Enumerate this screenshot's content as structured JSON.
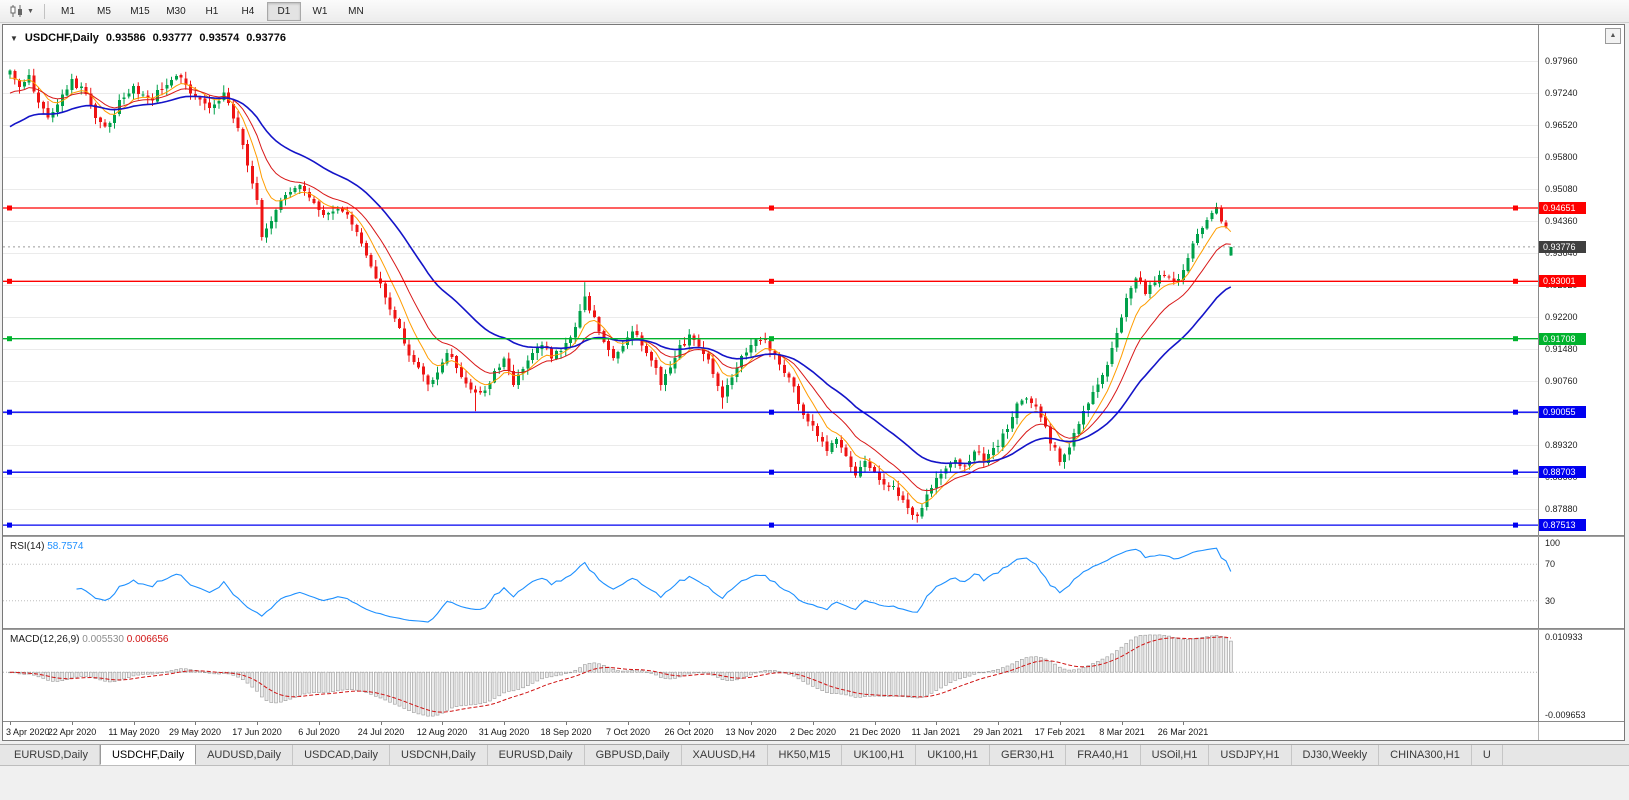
{
  "toolbar": {
    "periods": [
      "M1",
      "M5",
      "M15",
      "M30",
      "H1",
      "H4",
      "D1",
      "W1",
      "MN"
    ],
    "active_period": "D1"
  },
  "chart": {
    "collapse_icon": "▼",
    "symbol_title": "USDCHF,Daily",
    "ohlc": {
      "open": "0.93586",
      "high": "0.93777",
      "low": "0.93574",
      "close": "0.93776"
    },
    "scroll_icon": "▲",
    "price_axis": {
      "min": 0.8729,
      "max": 0.9877,
      "decimals": 5,
      "ticks": [
        0.9796,
        0.9724,
        0.9652,
        0.958,
        0.9508,
        0.9436,
        0.9364,
        0.9292,
        0.922,
        0.9148,
        0.9076,
        0.9004,
        0.8932,
        0.886,
        0.8788,
        0.8716
      ]
    },
    "current_price": {
      "value": 0.93776,
      "label": "0.93776",
      "bg": "#3f3f3f"
    },
    "hlines": [
      {
        "value": 0.94651,
        "label": "0.94651",
        "color": "#fe0000"
      },
      {
        "value": 0.93001,
        "label": "0.93001",
        "color": "#fe0000"
      },
      {
        "value": 0.91708,
        "label": "0.91708",
        "color": "#00b22d"
      },
      {
        "value": 0.90055,
        "label": "0.90055",
        "color": "#0000f0"
      },
      {
        "value": 0.88703,
        "label": "0.88703",
        "color": "#0000f0"
      },
      {
        "value": 0.87513,
        "label": "0.87513",
        "color": "#0000f0"
      }
    ],
    "colors": {
      "up": "#00a04a",
      "down": "#ee1414",
      "ma_fast": "#ff9d00",
      "ma_mid": "#d81919",
      "ma_slow": "#1414c8",
      "grid": "#ebebeb"
    },
    "ma_start": {
      "fast": 0.9752,
      "mid": 0.9716,
      "slow": 0.964
    },
    "candle_count": 258,
    "extremes": [
      {
        "i": 98,
        "low": 0.9008
      },
      {
        "i": 121,
        "high": 0.9298
      },
      {
        "i": 150,
        "low": 0.9013
      },
      {
        "i": 191,
        "low": 0.8757
      },
      {
        "i": 254,
        "high": 0.9472
      }
    ],
    "last_candle": {
      "o": 0.93586,
      "h": 0.93777,
      "l": 0.93574,
      "c": 0.93776
    },
    "series_anchors": [
      [
        0,
        0.978
      ],
      [
        2,
        0.9745
      ],
      [
        4,
        0.9762
      ],
      [
        6,
        0.97
      ],
      [
        8,
        0.9665
      ],
      [
        10,
        0.97
      ],
      [
        13,
        0.9748
      ],
      [
        16,
        0.9725
      ],
      [
        18,
        0.967
      ],
      [
        20,
        0.964
      ],
      [
        23,
        0.97
      ],
      [
        26,
        0.9735
      ],
      [
        30,
        0.9715
      ],
      [
        33,
        0.9748
      ],
      [
        36,
        0.9758
      ],
      [
        39,
        0.971
      ],
      [
        42,
        0.969
      ],
      [
        45,
        0.9725
      ],
      [
        46,
        0.97
      ],
      [
        48,
        0.964
      ],
      [
        50,
        0.956
      ],
      [
        52,
        0.948
      ],
      [
        53,
        0.94
      ],
      [
        55,
        0.944
      ],
      [
        58,
        0.95
      ],
      [
        61,
        0.952
      ],
      [
        63,
        0.949
      ],
      [
        66,
        0.945
      ],
      [
        69,
        0.947
      ],
      [
        72,
        0.943
      ],
      [
        74,
        0.939
      ],
      [
        76,
        0.934
      ],
      [
        78,
        0.929
      ],
      [
        80,
        0.924
      ],
      [
        82,
        0.919
      ],
      [
        84,
        0.914
      ],
      [
        86,
        0.91
      ],
      [
        88,
        0.9065
      ],
      [
        90,
        0.909
      ],
      [
        92,
        0.914
      ],
      [
        94,
        0.911
      ],
      [
        96,
        0.9075
      ],
      [
        98,
        0.9045
      ],
      [
        100,
        0.906
      ],
      [
        102,
        0.909
      ],
      [
        104,
        0.912
      ],
      [
        106,
        0.907
      ],
      [
        108,
        0.91
      ],
      [
        110,
        0.9135
      ],
      [
        112,
        0.9155
      ],
      [
        114,
        0.913
      ],
      [
        116,
        0.915
      ],
      [
        118,
        0.918
      ],
      [
        120,
        0.923
      ],
      [
        121,
        0.9262
      ],
      [
        123,
        0.9215
      ],
      [
        125,
        0.917
      ],
      [
        127,
        0.9135
      ],
      [
        129,
        0.916
      ],
      [
        131,
        0.9185
      ],
      [
        133,
        0.916
      ],
      [
        135,
        0.912
      ],
      [
        137,
        0.9075
      ],
      [
        139,
        0.911
      ],
      [
        141,
        0.915
      ],
      [
        143,
        0.9175
      ],
      [
        145,
        0.9155
      ],
      [
        147,
        0.912
      ],
      [
        149,
        0.907
      ],
      [
        150,
        0.9045
      ],
      [
        152,
        0.909
      ],
      [
        154,
        0.913
      ],
      [
        156,
        0.916
      ],
      [
        158,
        0.9175
      ],
      [
        160,
        0.915
      ],
      [
        162,
        0.912
      ],
      [
        164,
        0.908
      ],
      [
        166,
        0.903
      ],
      [
        168,
        0.8985
      ],
      [
        170,
        0.895
      ],
      [
        172,
        0.892
      ],
      [
        174,
        0.895
      ],
      [
        176,
        0.8905
      ],
      [
        178,
        0.887
      ],
      [
        180,
        0.8895
      ],
      [
        182,
        0.8865
      ],
      [
        184,
        0.884
      ],
      [
        186,
        0.884
      ],
      [
        189,
        0.8795
      ],
      [
        191,
        0.8768
      ],
      [
        193,
        0.882
      ],
      [
        195,
        0.886
      ],
      [
        197,
        0.8885
      ],
      [
        199,
        0.8905
      ],
      [
        201,
        0.888
      ],
      [
        203,
        0.892
      ],
      [
        205,
        0.8895
      ],
      [
        207,
        0.892
      ],
      [
        209,
        0.895
      ],
      [
        211,
        0.9
      ],
      [
        213,
        0.904
      ],
      [
        215,
        0.903
      ],
      [
        217,
        0.899
      ],
      [
        219,
        0.894
      ],
      [
        221,
        0.8895
      ],
      [
        223,
        0.893
      ],
      [
        225,
        0.898
      ],
      [
        227,
        0.903
      ],
      [
        229,
        0.907
      ],
      [
        231,
        0.911
      ],
      [
        233,
        0.918
      ],
      [
        235,
        0.926
      ],
      [
        237,
        0.93
      ],
      [
        239,
        0.928
      ],
      [
        241,
        0.93
      ],
      [
        243,
        0.932
      ],
      [
        245,
        0.9295
      ],
      [
        247,
        0.933
      ],
      [
        249,
        0.938
      ],
      [
        251,
        0.9425
      ],
      [
        253,
        0.9455
      ],
      [
        254,
        0.9465
      ],
      [
        255,
        0.944
      ],
      [
        256,
        0.9415
      ],
      [
        257,
        0.9378
      ]
    ],
    "dates": [
      "3 Apr 2020",
      "22 Apr 2020",
      "11 May 2020",
      "29 May 2020",
      "17 Jun 2020",
      "6 Jul 2020",
      "24 Jul 2020",
      "12 Aug 2020",
      "31 Aug 2020",
      "18 Sep 2020",
      "7 Oct 2020",
      "26 Oct 2020",
      "13 Nov 2020",
      "2 Dec 2020",
      "21 Dec 2020",
      "11 Jan 2021",
      "29 Jan 2021",
      "17 Feb 2021",
      "8 Mar 2021",
      "26 Mar 2021"
    ],
    "date_step": 13
  },
  "rsi": {
    "label": "RSI(14)",
    "value": "58.7574",
    "color": "#1e90ff",
    "levels": [
      70,
      30
    ],
    "axis_ticks": [
      100,
      70,
      30
    ]
  },
  "macd": {
    "label": "MACD(12,26,9)",
    "value_main": "0.005530",
    "value_signal": "0.006656",
    "axis_top": "0.010933",
    "axis_bottom": "-0.009653",
    "hist_fill": "#ececec",
    "hist_stroke": "#9b9b9b",
    "signal_color": "#d01414"
  },
  "tabs": {
    "items": [
      {
        "label": "EURUSD,Daily",
        "active": false
      },
      {
        "label": "USDCHF,Daily",
        "active": true
      },
      {
        "label": "AUDUSD,Daily",
        "active": false
      },
      {
        "label": "USDCAD,Daily",
        "active": false
      },
      {
        "label": "USDCNH,Daily",
        "active": false
      },
      {
        "label": "EURUSD,Daily",
        "active": false
      },
      {
        "label": "GBPUSD,Daily",
        "active": false
      },
      {
        "label": "XAUUSD,H4",
        "active": false
      },
      {
        "label": "HK50,M15",
        "active": false
      },
      {
        "label": "UK100,H1",
        "active": false
      },
      {
        "label": "UK100,H1",
        "active": false
      },
      {
        "label": "GER30,H1",
        "active": false
      },
      {
        "label": "FRA40,H1",
        "active": false
      },
      {
        "label": "USOil,H1",
        "active": false
      },
      {
        "label": "USDJPY,H1",
        "active": false
      },
      {
        "label": "DJ30,Weekly",
        "active": false
      },
      {
        "label": "CHINA300,H1",
        "active": false
      },
      {
        "label": "U",
        "active": false
      }
    ]
  }
}
